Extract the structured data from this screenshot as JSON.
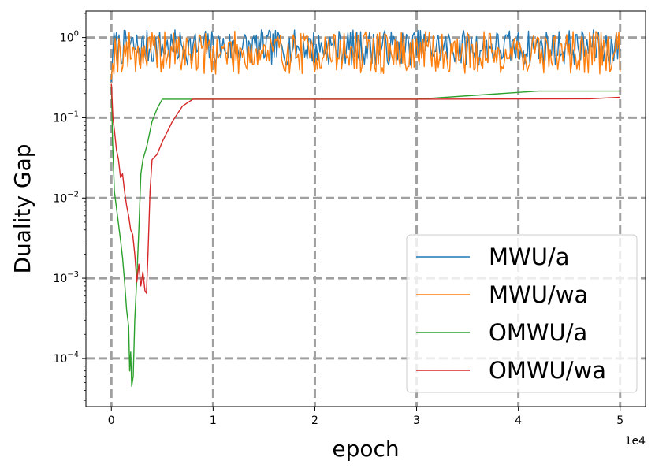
{
  "chart_data": {
    "type": "line",
    "xlabel": "epoch",
    "ylabel": "Duality Gap",
    "x_offset_label": "1e4",
    "x_scale_factor": 10000,
    "xlim": [
      -2500,
      52500
    ],
    "ylim_log10": [
      -4.6,
      0.33
    ],
    "y_scale": "log",
    "grid": true,
    "legend_position": "lower-right",
    "x_ticks": [
      {
        "value": 0,
        "label": "0"
      },
      {
        "value": 10000,
        "label": "1"
      },
      {
        "value": 20000,
        "label": "2"
      },
      {
        "value": 30000,
        "label": "3"
      },
      {
        "value": 40000,
        "label": "4"
      },
      {
        "value": 50000,
        "label": "5"
      }
    ],
    "y_ticks": [
      {
        "exp": 0,
        "base": "10",
        "label": "0"
      },
      {
        "exp": -1,
        "base": "10",
        "label": "−1"
      },
      {
        "exp": -2,
        "base": "10",
        "label": "−2"
      },
      {
        "exp": -3,
        "base": "10",
        "label": "−3"
      },
      {
        "exp": -4,
        "base": "10",
        "label": "−4"
      }
    ],
    "series": [
      {
        "name": "MWU/a",
        "color": "#1f77b4",
        "noisy": true,
        "x_start": 0,
        "x_end": 50000,
        "n_points": 400,
        "start_value": 0.28,
        "typical_range": [
          0.45,
          1.25
        ],
        "seed": 7
      },
      {
        "name": "MWU/wa",
        "color": "#ff7f0e",
        "noisy": true,
        "x_start": 0,
        "x_end": 50000,
        "n_points": 400,
        "start_value": 0.3,
        "typical_range": [
          0.35,
          1.2
        ],
        "seed": 19
      },
      {
        "name": "OMWU/a",
        "color": "#2ca02c",
        "noisy": false,
        "points": [
          [
            0,
            0.27
          ],
          [
            120,
            0.05
          ],
          [
            300,
            0.012
          ],
          [
            600,
            0.006
          ],
          [
            900,
            0.003
          ],
          [
            1100,
            0.0018
          ],
          [
            1300,
            0.0009
          ],
          [
            1500,
            0.0004
          ],
          [
            1700,
            0.00025
          ],
          [
            1800,
            7e-05
          ],
          [
            1900,
            0.00012
          ],
          [
            2000,
            4.5e-05
          ],
          [
            2150,
            6e-05
          ],
          [
            2300,
            0.0003
          ],
          [
            2500,
            0.001
          ],
          [
            2700,
            0.004
          ],
          [
            2900,
            0.02
          ],
          [
            3100,
            0.03
          ],
          [
            3500,
            0.045
          ],
          [
            4000,
            0.09
          ],
          [
            4500,
            0.13
          ],
          [
            5000,
            0.17
          ],
          [
            8000,
            0.17
          ],
          [
            30000,
            0.17
          ],
          [
            42000,
            0.215
          ],
          [
            50000,
            0.215
          ]
        ]
      },
      {
        "name": "OMWU/wa",
        "color": "#d62728",
        "noisy": false,
        "points": [
          [
            0,
            0.27
          ],
          [
            150,
            0.1
          ],
          [
            300,
            0.07
          ],
          [
            500,
            0.04
          ],
          [
            700,
            0.03
          ],
          [
            900,
            0.018
          ],
          [
            1100,
            0.02
          ],
          [
            1300,
            0.012
          ],
          [
            1500,
            0.008
          ],
          [
            1700,
            0.006
          ],
          [
            1900,
            0.004
          ],
          [
            2100,
            0.0035
          ],
          [
            2300,
            0.002
          ],
          [
            2500,
            0.0009
          ],
          [
            2700,
            0.0015
          ],
          [
            2900,
            0.0008
          ],
          [
            3100,
            0.0012
          ],
          [
            3300,
            0.0007
          ],
          [
            3450,
            0.00065
          ],
          [
            3600,
            0.002
          ],
          [
            3800,
            0.012
          ],
          [
            4000,
            0.03
          ],
          [
            4500,
            0.035
          ],
          [
            5000,
            0.05
          ],
          [
            6000,
            0.09
          ],
          [
            7000,
            0.14
          ],
          [
            8000,
            0.17
          ],
          [
            20000,
            0.17
          ],
          [
            30000,
            0.17
          ],
          [
            47000,
            0.172
          ],
          [
            50000,
            0.18
          ]
        ]
      }
    ]
  }
}
